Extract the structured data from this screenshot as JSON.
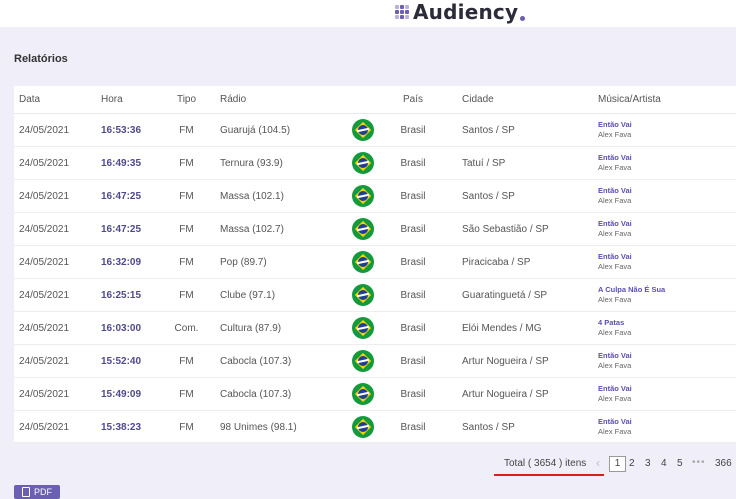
{
  "brand": {
    "name": "Audiency"
  },
  "section": {
    "title": "Relatórios"
  },
  "table": {
    "headers": {
      "date": "Data",
      "time": "Hora",
      "type": "Tipo",
      "radio": "Rádio",
      "country": "País",
      "city": "Cidade",
      "song": "Música/Artista"
    },
    "rows": [
      {
        "date": "24/05/2021",
        "time": "16:53:36",
        "type": "FM",
        "radio": "Guarujá (104.5)",
        "country": "Brasil",
        "city": "Santos / SP",
        "song": "Então Vai",
        "artist": "Alex Fava"
      },
      {
        "date": "24/05/2021",
        "time": "16:49:35",
        "type": "FM",
        "radio": "Ternura (93.9)",
        "country": "Brasil",
        "city": "Tatuí / SP",
        "song": "Então Vai",
        "artist": "Alex Fava"
      },
      {
        "date": "24/05/2021",
        "time": "16:47:25",
        "type": "FM",
        "radio": "Massa (102.1)",
        "country": "Brasil",
        "city": "Santos / SP",
        "song": "Então Vai",
        "artist": "Alex Fava"
      },
      {
        "date": "24/05/2021",
        "time": "16:47:25",
        "type": "FM",
        "radio": "Massa (102.7)",
        "country": "Brasil",
        "city": "São Sebastião / SP",
        "song": "Então Vai",
        "artist": "Alex Fava"
      },
      {
        "date": "24/05/2021",
        "time": "16:32:09",
        "type": "FM",
        "radio": "Pop (89.7)",
        "country": "Brasil",
        "city": "Piracicaba / SP",
        "song": "Então Vai",
        "artist": "Alex Fava"
      },
      {
        "date": "24/05/2021",
        "time": "16:25:15",
        "type": "FM",
        "radio": "Clube (97.1)",
        "country": "Brasil",
        "city": "Guaratinguetá / SP",
        "song": "A Culpa Não É Sua",
        "artist": "Alex Fava"
      },
      {
        "date": "24/05/2021",
        "time": "16:03:00",
        "type": "Com.",
        "radio": "Cultura (87.9)",
        "country": "Brasil",
        "city": "Elói Mendes / MG",
        "song": "4 Patas",
        "artist": "Alex Fava"
      },
      {
        "date": "24/05/2021",
        "time": "15:52:40",
        "type": "FM",
        "radio": "Cabocla (107.3)",
        "country": "Brasil",
        "city": "Artur Nogueira / SP",
        "song": "Então Vai",
        "artist": "Alex Fava"
      },
      {
        "date": "24/05/2021",
        "time": "15:49:09",
        "type": "FM",
        "radio": "Cabocla (107.3)",
        "country": "Brasil",
        "city": "Artur Nogueira / SP",
        "song": "Então Vai",
        "artist": "Alex Fava"
      },
      {
        "date": "24/05/2021",
        "time": "15:38:23",
        "type": "FM",
        "radio": "98 Unimes (98.1)",
        "country": "Brasil",
        "city": "Santos / SP",
        "song": "Então Vai",
        "artist": "Alex Fava"
      }
    ]
  },
  "pagination": {
    "total": "Total ( 3654 ) itens",
    "prev": "‹",
    "pages": [
      "1",
      "2",
      "3",
      "4",
      "5"
    ],
    "active_page": "1",
    "dots": "•••",
    "last": "366"
  },
  "actions": {
    "pdf_label": "PDF"
  },
  "colors": {
    "accent": "#6a5fb0",
    "time_text": "#4e4a8c",
    "underline": "#d42020"
  },
  "icons": {
    "flag": "brazil-flag-icon",
    "pdf": "file-icon",
    "logo": "audiency-logo-icon"
  }
}
